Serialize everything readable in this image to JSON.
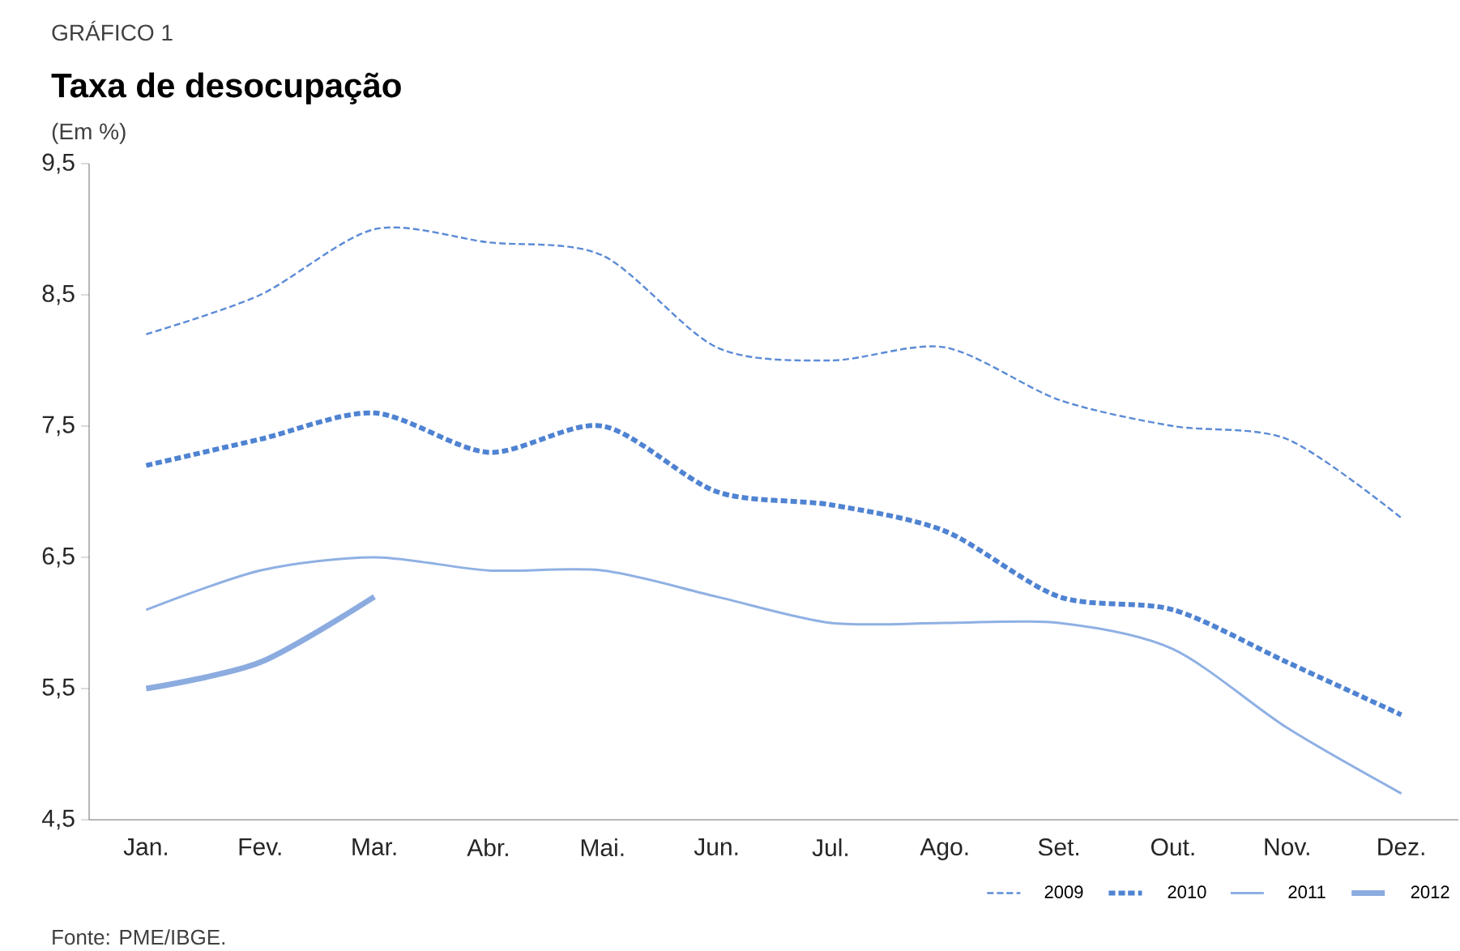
{
  "chart_data": {
    "type": "line",
    "title": "Taxa de desocupação",
    "subtitle": "(Em %)",
    "annotations": [
      "GRÁFICO 1",
      "Fonte: PME/IBGE."
    ],
    "categories": [
      "Jan.",
      "Fev.",
      "Mar.",
      "Abr.",
      "Mai.",
      "Jun.",
      "Jul.",
      "Ago.",
      "Set.",
      "Out.",
      "Nov.",
      "Dez."
    ],
    "series": [
      {
        "name": "2009",
        "color": "#5b8bd6",
        "line_style": "dashed",
        "values": [
          8.2,
          8.5,
          9.0,
          8.9,
          8.8,
          8.1,
          8.0,
          8.1,
          7.7,
          7.5,
          7.4,
          6.8
        ]
      },
      {
        "name": "2010",
        "color": "#4f83d2",
        "line_style": "dashed",
        "values": [
          7.2,
          7.4,
          7.6,
          7.3,
          7.5,
          7.0,
          6.9,
          6.7,
          6.2,
          6.1,
          5.7,
          5.3
        ]
      },
      {
        "name": "2011",
        "color": "#8fb0e3",
        "line_style": "solid",
        "values": [
          6.1,
          6.4,
          6.5,
          6.4,
          6.4,
          6.2,
          6.0,
          6.0,
          6.0,
          5.8,
          5.2,
          4.7
        ]
      },
      {
        "name": "2012",
        "color": "#8cace0",
        "line_style": "solid",
        "values": [
          5.5,
          5.7,
          6.2,
          null,
          null,
          null,
          null,
          null,
          null,
          null,
          null,
          null
        ]
      }
    ],
    "ylim": [
      4.5,
      9.5
    ],
    "yticks": [
      {
        "value": 4.5,
        "label": "4,5"
      },
      {
        "value": 5.5,
        "label": "5,5"
      },
      {
        "value": 6.5,
        "label": "6,5"
      },
      {
        "value": 7.5,
        "label": "7,5"
      },
      {
        "value": 8.5,
        "label": "8,5"
      },
      {
        "value": 9.5,
        "label": "9,5"
      }
    ],
    "grid": false,
    "legend": "bottom right",
    "marker": "none"
  }
}
